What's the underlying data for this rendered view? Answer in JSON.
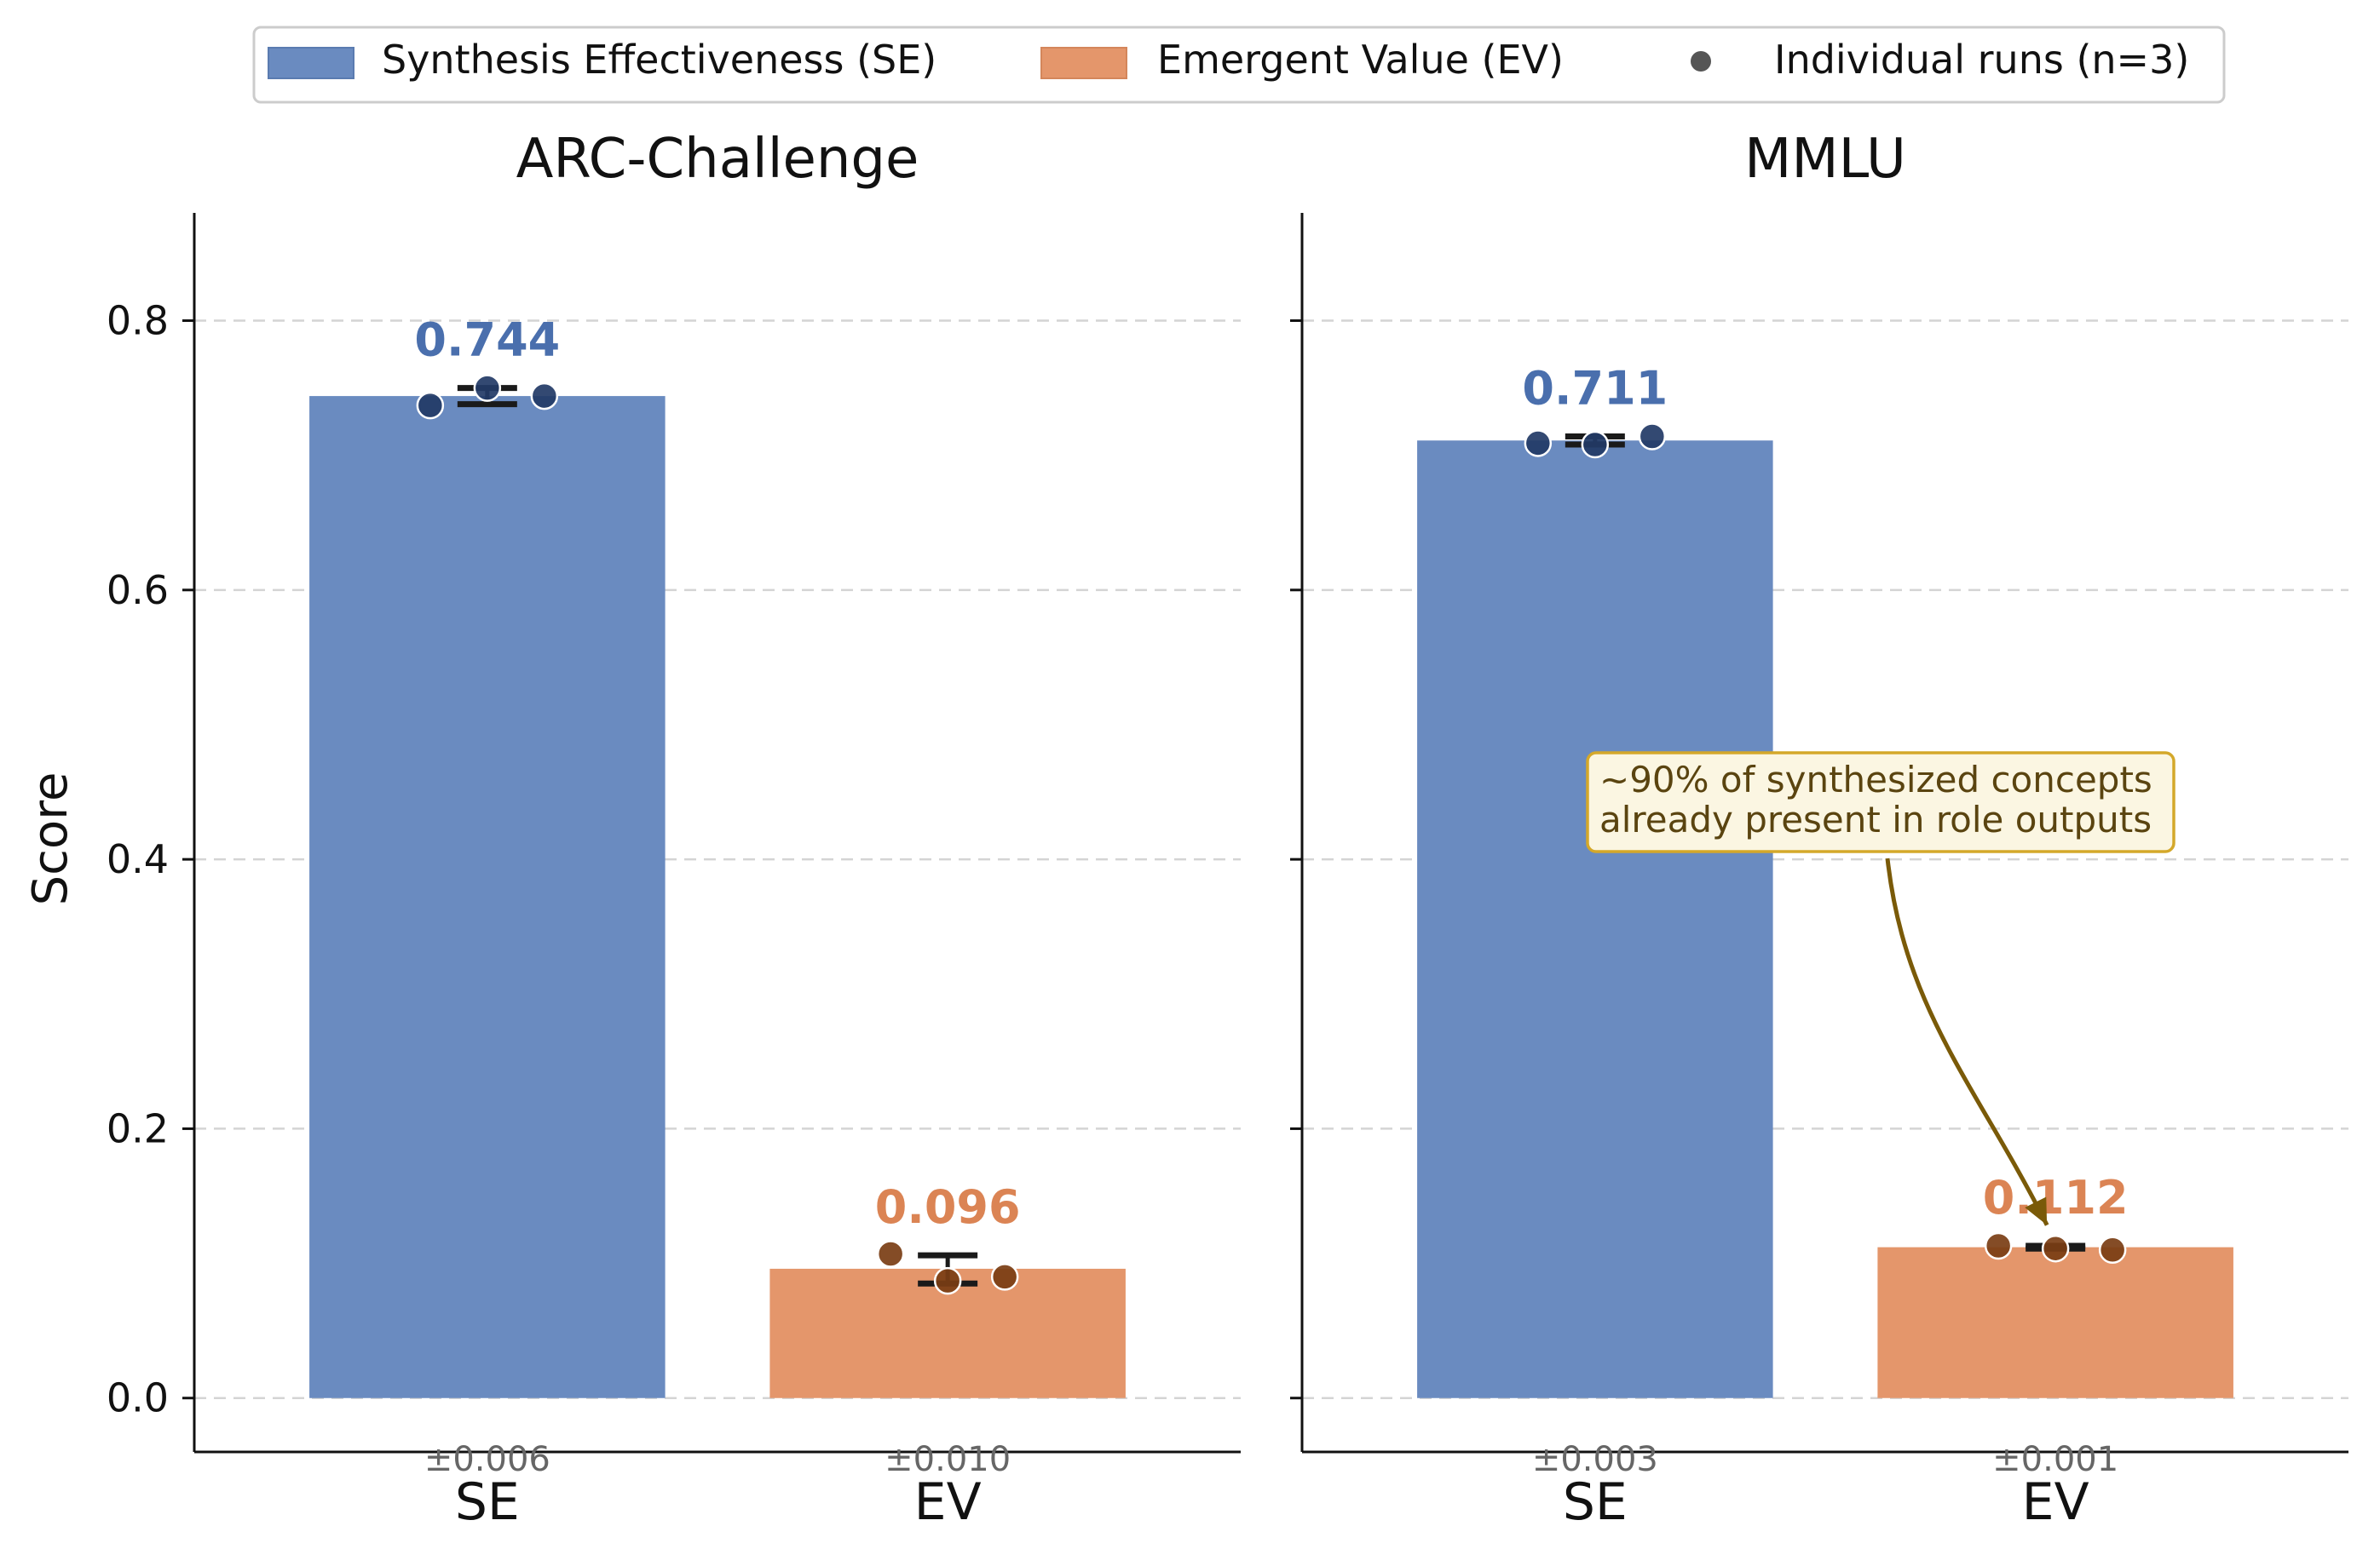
{
  "legend": {
    "items": [
      {
        "label": "Synthesis Effectiveness (SE)",
        "color": "#6a8bc0"
      },
      {
        "label": "Emergent Value (EV)",
        "color": "#e4966b"
      },
      {
        "label": "Individual runs (n=3)",
        "color": "#555555"
      }
    ],
    "placement": "top-center"
  },
  "y_axis_label": "Score",
  "colors": {
    "se": "#6a8bc0",
    "ev": "#e4966b",
    "se_label": "#4a6fad",
    "ev_label": "#db8454",
    "se_dot": "#223a66",
    "ev_dot": "#7a3d14",
    "annotation_border": "#d4a82a",
    "annotation_bg": "#fbf6e2",
    "annotation_text": "#5a4410",
    "arrow": "#7a5a08"
  },
  "chart_data": [
    {
      "type": "bar",
      "title": "ARC-Challenge",
      "categories": [
        "SE",
        "EV"
      ],
      "values": [
        0.744,
        0.096
      ],
      "value_labels": [
        "0.744",
        "0.096"
      ],
      "std_labels": [
        "±0.006",
        "±0.010"
      ],
      "error_bars": [
        [
          0.738,
          0.75
        ],
        [
          0.085,
          0.106
        ]
      ],
      "runs": [
        [
          0.737,
          0.75,
          0.744
        ],
        [
          0.107,
          0.087,
          0.09
        ]
      ],
      "ylabel": "Score",
      "ylim": [
        -0.04,
        0.88
      ],
      "yticks": [
        0.0,
        0.2,
        0.4,
        0.6,
        0.8
      ],
      "ytick_labels": [
        "0.0",
        "0.2",
        "0.4",
        "0.6",
        "0.8"
      ],
      "grid": true
    },
    {
      "type": "bar",
      "title": "MMLU",
      "categories": [
        "SE",
        "EV"
      ],
      "values": [
        0.711,
        0.112
      ],
      "value_labels": [
        "0.711",
        "0.112"
      ],
      "std_labels": [
        "±0.003",
        "±0.001"
      ],
      "error_bars": [
        [
          0.708,
          0.714
        ],
        [
          0.111,
          0.113
        ]
      ],
      "runs": [
        [
          0.709,
          0.708,
          0.714
        ],
        [
          0.113,
          0.111,
          0.11
        ]
      ],
      "ylim": [
        -0.04,
        0.88
      ],
      "yticks": [
        0.0,
        0.2,
        0.4,
        0.6,
        0.8
      ],
      "grid": true,
      "annotation": {
        "lines": [
          "~90% of synthesized concepts",
          "already present in role outputs"
        ],
        "target_category": "EV"
      }
    }
  ]
}
